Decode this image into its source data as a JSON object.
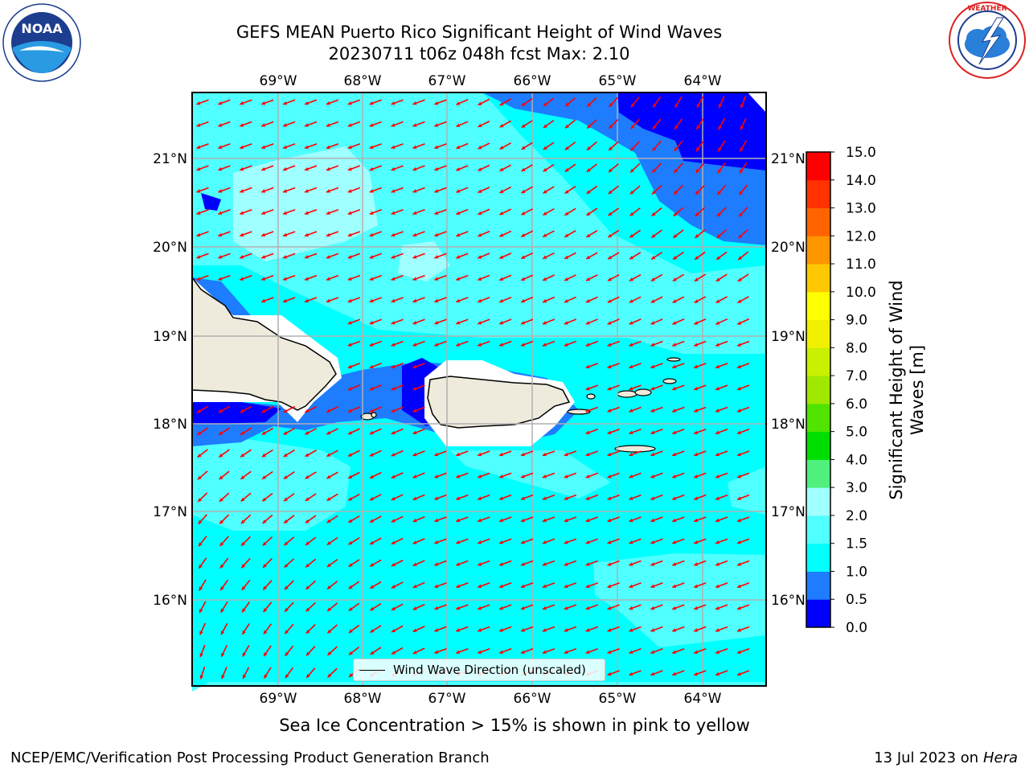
{
  "title_line1": "GEFS MEAN Puerto Rico Significant Height of Wind Waves",
  "title_line2": "20230711 t06z 048h fcst   Max: 2.10",
  "logos": {
    "left": {
      "icon": "noaa-logo",
      "text": "NOAA",
      "ring_text": "NATIONAL OCEANIC AND ATMOSPHERIC ADMINISTRATION · U.S. DEPARTMENT OF COMMERCE"
    },
    "right": {
      "icon": "nws-logo",
      "ring_text": "NATIONAL WEATHER SERVICE"
    }
  },
  "map": {
    "lon_labels": [
      "69°W",
      "68°W",
      "67°W",
      "66°W",
      "65°W",
      "64°W"
    ],
    "lat_labels": [
      "21°N",
      "20°N",
      "19°N",
      "18°N",
      "17°N",
      "16°N"
    ],
    "legend_label": "Wind Wave Direction (unscaled)",
    "ocean_color": "#00ffff",
    "land_color": "#eeebdc",
    "arrow_color": "#ff0000"
  },
  "colorbar": {
    "label": "Significant Height of Wind Waves [m]",
    "ticks": [
      "0.0",
      "0.5",
      "1.0",
      "1.5",
      "2.0",
      "3.0",
      "4.0",
      "5.0",
      "6.0",
      "7.0",
      "8.0",
      "9.0",
      "10.0",
      "11.0",
      "12.0",
      "13.0",
      "14.0",
      "15.0"
    ],
    "colors": [
      "#0000ff",
      "#1e7cff",
      "#00ffff",
      "#50ffff",
      "#a0ffff",
      "#50f07c",
      "#00dd00",
      "#50e400",
      "#a0e800",
      "#c8f000",
      "#f0f000",
      "#ffff00",
      "#ffc800",
      "#ff9600",
      "#ff6400",
      "#ff3200",
      "#ff0000"
    ]
  },
  "subnote": "Sea Ice Concentration > 15% is shown in pink to yellow",
  "footer_left": "NCEP/EMC/Verification Post Processing Product Generation Branch",
  "footer_right_prefix": "13 Jul 2023 on ",
  "footer_right_host": "Hera"
}
